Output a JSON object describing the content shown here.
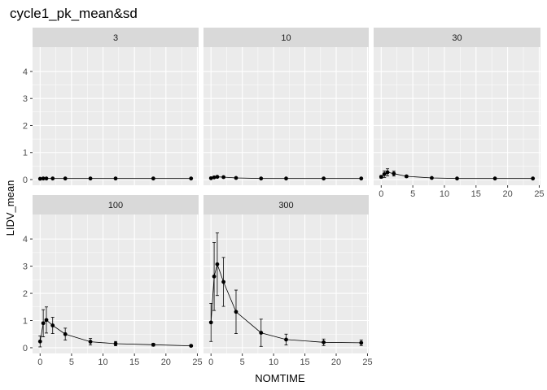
{
  "chart_data": {
    "type": "scatter",
    "title": "cycle1_pk_mean&sd",
    "xlabel": "NOMTIME",
    "ylabel": "LIDV_mean",
    "x_ticks": [
      0,
      5,
      10,
      15,
      20,
      25
    ],
    "y_ticks": [
      0,
      1,
      2,
      3,
      4
    ],
    "xlim": [
      -1.2,
      25.2
    ],
    "ylim": [
      -0.21,
      4.9
    ],
    "grid": true,
    "legend": "none",
    "colors": {
      "panel_bg": "#ebebeb",
      "strip_bg": "#d9d9d9",
      "grid_major": "#ffffff",
      "points": "#000000"
    },
    "facets": [
      {
        "label": "3",
        "x": [
          0,
          0.5,
          1,
          2,
          4,
          8,
          12,
          18,
          24
        ],
        "y": [
          0.03,
          0.04,
          0.04,
          0.04,
          0.04,
          0.04,
          0.04,
          0.04,
          0.04
        ],
        "sd": [
          0.01,
          0.01,
          0.01,
          0.01,
          0.01,
          0.01,
          0.01,
          0.01,
          0.01
        ]
      },
      {
        "label": "10",
        "x": [
          0,
          0.5,
          1,
          2,
          4,
          8,
          12,
          18,
          24
        ],
        "y": [
          0.05,
          0.08,
          0.1,
          0.09,
          0.06,
          0.04,
          0.04,
          0.04,
          0.04
        ],
        "sd": [
          0.01,
          0.02,
          0.02,
          0.02,
          0.01,
          0.01,
          0.01,
          0.01,
          0.01
        ]
      },
      {
        "label": "30",
        "x": [
          0,
          0.5,
          1,
          2,
          4,
          8,
          12,
          18,
          24
        ],
        "y": [
          0.1,
          0.2,
          0.27,
          0.22,
          0.12,
          0.06,
          0.04,
          0.04,
          0.04
        ],
        "sd": [
          0.05,
          0.12,
          0.13,
          0.09,
          0.04,
          0.02,
          0.01,
          0.01,
          0.01
        ]
      },
      {
        "label": "100",
        "x": [
          0,
          0.5,
          1,
          2,
          4,
          8,
          12,
          18,
          24
        ],
        "y": [
          0.23,
          0.9,
          1.02,
          0.82,
          0.5,
          0.22,
          0.15,
          0.11,
          0.07
        ],
        "sd": [
          0.2,
          0.5,
          0.48,
          0.3,
          0.22,
          0.12,
          0.08,
          0.05,
          0.03
        ]
      },
      {
        "label": "300",
        "x": [
          0,
          0.5,
          1,
          2,
          4,
          8,
          12,
          18,
          24
        ],
        "y": [
          0.93,
          2.62,
          3.07,
          2.42,
          1.32,
          0.55,
          0.3,
          0.2,
          0.18
        ],
        "sd": [
          0.7,
          1.25,
          1.15,
          0.9,
          0.8,
          0.5,
          0.2,
          0.12,
          0.1
        ]
      }
    ]
  }
}
